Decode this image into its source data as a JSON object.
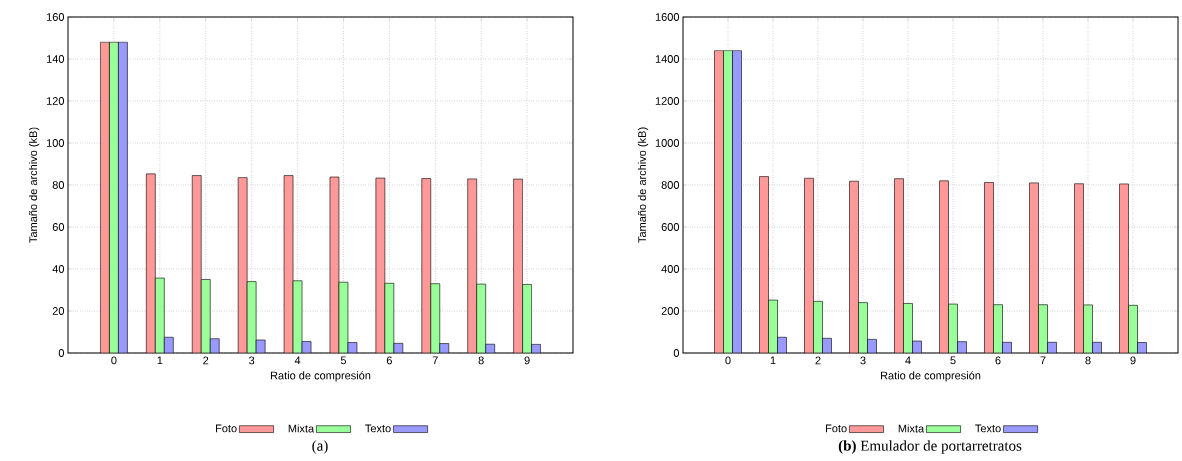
{
  "chart_data": [
    {
      "type": "bar",
      "categories": [
        "0",
        "1",
        "2",
        "3",
        "4",
        "5",
        "6",
        "7",
        "8",
        "9"
      ],
      "xlabel": "Ratio de compresión",
      "ylabel": "Tamaño de archivo (kB)",
      "ylim": [
        0,
        160
      ],
      "yticks": [
        0,
        20,
        40,
        60,
        80,
        100,
        120,
        140,
        160
      ],
      "grid": true,
      "legend": "bottom",
      "annotations": [
        "(a)"
      ],
      "series": [
        {
          "name": "Foto",
          "color": "#ff9999",
          "values": [
            148,
            85.3,
            84.5,
            83.5,
            84.5,
            83.8,
            83.3,
            83.1,
            82.9,
            82.8
          ]
        },
        {
          "name": "Mixta",
          "color": "#99ff99",
          "values": [
            148,
            35.7,
            35,
            34,
            34.4,
            33.7,
            33.2,
            33,
            32.8,
            32.6
          ]
        },
        {
          "name": "Texto",
          "color": "#9999ff",
          "values": [
            148,
            7.5,
            6.8,
            6.2,
            5.5,
            5,
            4.6,
            4.5,
            4.2,
            4.1
          ]
        }
      ]
    },
    {
      "type": "bar",
      "categories": [
        "0",
        "1",
        "2",
        "3",
        "4",
        "5",
        "6",
        "7",
        "8",
        "9"
      ],
      "xlabel": "Ratio de compresión",
      "ylabel": "Tamaño de archivo (kB)",
      "ylim": [
        0,
        1600
      ],
      "yticks": [
        0,
        200,
        400,
        600,
        800,
        1000,
        1200,
        1400,
        1600
      ],
      "grid": true,
      "legend": "bottom",
      "annotations": [
        "**(b)** Emulador de portarretratos"
      ],
      "series": [
        {
          "name": "Foto",
          "color": "#ff9999",
          "values": [
            1440,
            840,
            832,
            818,
            830,
            820,
            812,
            810,
            806,
            805
          ]
        },
        {
          "name": "Mixta",
          "color": "#99ff99",
          "values": [
            1440,
            252,
            246,
            240,
            236,
            233,
            230,
            230,
            229,
            227
          ]
        },
        {
          "name": "Texto",
          "color": "#9999ff",
          "values": [
            1440,
            75,
            70,
            65,
            57,
            54,
            51,
            51,
            51,
            50
          ]
        }
      ]
    }
  ]
}
